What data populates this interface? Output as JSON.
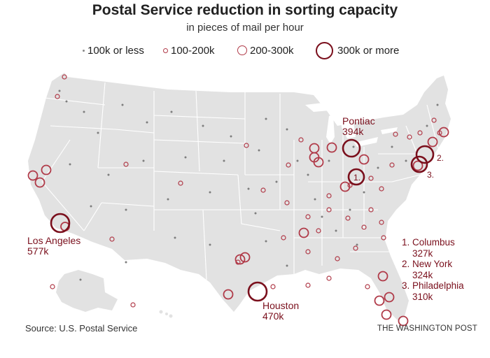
{
  "header": {
    "title": "Postal Service reduction in sorting capacity",
    "subtitle": "in pieces of mail per hour"
  },
  "legend": [
    {
      "label": "100k or less",
      "size": "tiny"
    },
    {
      "label": "100-200k",
      "size": "small"
    },
    {
      "label": "200-300k",
      "size": "medium"
    },
    {
      "label": "300k or more",
      "size": "large"
    }
  ],
  "colors": {
    "marker": "#b03a48",
    "label": "#7a0f1c",
    "land": "#e2e2e2",
    "border": "#ffffff",
    "dot": "#7d7d7d"
  },
  "labels": {
    "pontiac": {
      "name": "Pontiac",
      "value": "394k"
    },
    "los_angeles": {
      "name": "Los Angeles",
      "value": "577k"
    },
    "houston": {
      "name": "Houston",
      "value": "470k"
    },
    "markers": [
      "1.",
      "2.",
      "3."
    ]
  },
  "top3": [
    {
      "rank": "1.",
      "name": "Columbus",
      "value": "327k"
    },
    {
      "rank": "2.",
      "name": "New York",
      "value": "324k"
    },
    {
      "rank": "3.",
      "name": "Philadelphia",
      "value": "310k"
    }
  ],
  "footer": {
    "source": "Source: U.S. Postal Service",
    "credit": "THE WASHINGTON POST"
  }
}
